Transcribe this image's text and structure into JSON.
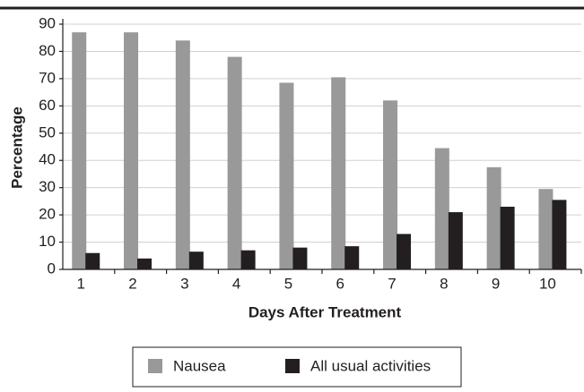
{
  "chart_data": {
    "type": "bar",
    "y_label": "Percentage",
    "x_label": "Days After Treatment",
    "categories": [
      1,
      2,
      3,
      4,
      5,
      6,
      7,
      8,
      9,
      10
    ],
    "series": [
      {
        "name": "Nausea",
        "color": "#999999",
        "values": [
          87,
          87,
          84,
          78,
          68.5,
          70.5,
          62,
          44.5,
          37.5,
          29.5
        ]
      },
      {
        "name": "All usual activities",
        "color": "#231f20",
        "values": [
          6,
          4,
          6.5,
          7,
          8,
          8.5,
          13,
          21,
          23,
          25.5
        ]
      }
    ],
    "ylim": [
      0,
      90
    ],
    "yticks": [
      0,
      10,
      20,
      30,
      40,
      50,
      60,
      70,
      80,
      90
    ],
    "grid": true
  }
}
